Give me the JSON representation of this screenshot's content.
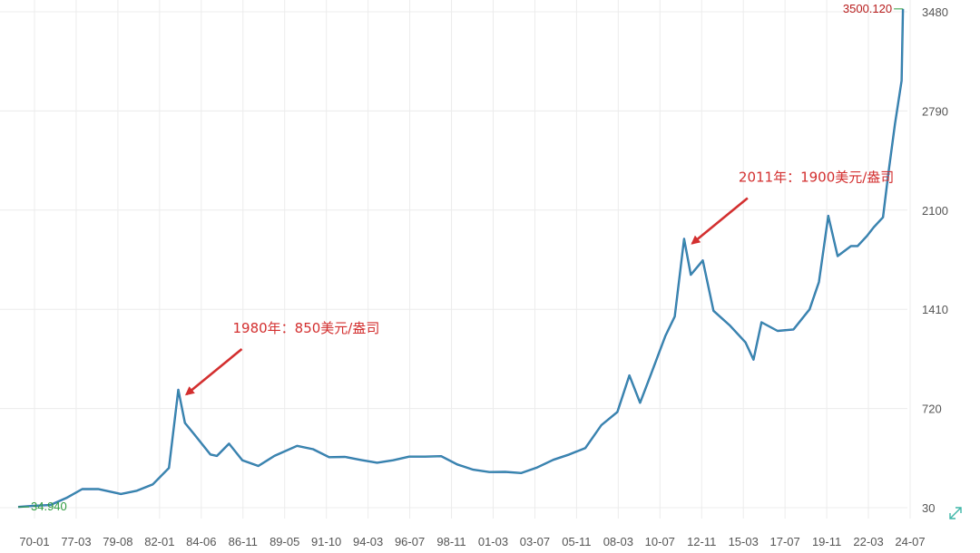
{
  "chart_data": {
    "type": "line",
    "title": "",
    "xlabel": "",
    "ylabel": "",
    "grid": true,
    "x_ticks": [
      "70-01",
      "77-03",
      "79-08",
      "82-01",
      "84-06",
      "86-11",
      "89-05",
      "91-10",
      "94-03",
      "96-07",
      "98-11",
      "01-03",
      "03-07",
      "05-11",
      "08-03",
      "10-07",
      "12-11",
      "15-03",
      "17-07",
      "19-11",
      "22-03",
      "24-07"
    ],
    "y_ticks": [
      30,
      720,
      1410,
      2100,
      2790,
      3480
    ],
    "ylim": [
      30,
      3480
    ],
    "series": [
      {
        "color": "#2f6fb3",
        "x": [
          "1970-01",
          "1971-01",
          "1972-01",
          "1973-01",
          "1974-01",
          "1975-01",
          "1976-06",
          "1977-06",
          "1978-06",
          "1979-06",
          "1980-01",
          "1980-06",
          "1981-01",
          "1982-01",
          "1982-06",
          "1983-03",
          "1984-01",
          "1985-01",
          "1986-01",
          "1987-06",
          "1988-06",
          "1989-06",
          "1990-06",
          "1991-06",
          "1992-06",
          "1993-06",
          "1994-06",
          "1995-06",
          "1996-06",
          "1997-06",
          "1998-06",
          "1999-06",
          "2000-06",
          "2001-06",
          "2002-06",
          "2003-06",
          "2004-06",
          "2005-06",
          "2006-06",
          "2007-06",
          "2008-03",
          "2008-11",
          "2009-06",
          "2010-06",
          "2011-01",
          "2011-08",
          "2012-01",
          "2012-10",
          "2013-06",
          "2014-06",
          "2015-06",
          "2015-12",
          "2016-06",
          "2017-06",
          "2018-06",
          "2019-06",
          "2020-01",
          "2020-08",
          "2021-03",
          "2022-01",
          "2022-06",
          "2023-01",
          "2023-06",
          "2024-01",
          "2024-05",
          "2024-10",
          "2025-03",
          "2025-04"
        ],
        "values": [
          35,
          43,
          48,
          97,
          159,
          160,
          125,
          148,
          193,
          306,
          850,
          620,
          540,
          400,
          390,
          475,
          360,
          320,
          390,
          460,
          437,
          381,
          383,
          362,
          343,
          360,
          385,
          385,
          388,
          331,
          294,
          278,
          279,
          271,
          310,
          363,
          400,
          445,
          604,
          696,
          950,
          760,
          930,
          1225,
          1360,
          1900,
          1650,
          1750,
          1400,
          1300,
          1180,
          1060,
          1320,
          1260,
          1270,
          1410,
          1600,
          2060,
          1780,
          1850,
          1850,
          1920,
          1980,
          2050,
          2350,
          2700,
          3000,
          3500
        ]
      }
    ],
    "annotations": [
      {
        "text": "1980年：850美元/盎司",
        "x": "1980-01",
        "y": 850
      },
      {
        "text": "2011年：1900美元/盎司",
        "x": "2011-08",
        "y": 1900
      }
    ],
    "start_label": {
      "text": "34.940",
      "color": "#2e9b3f"
    },
    "end_label": {
      "text": "3500.120",
      "color": "#b71c1c"
    }
  }
}
